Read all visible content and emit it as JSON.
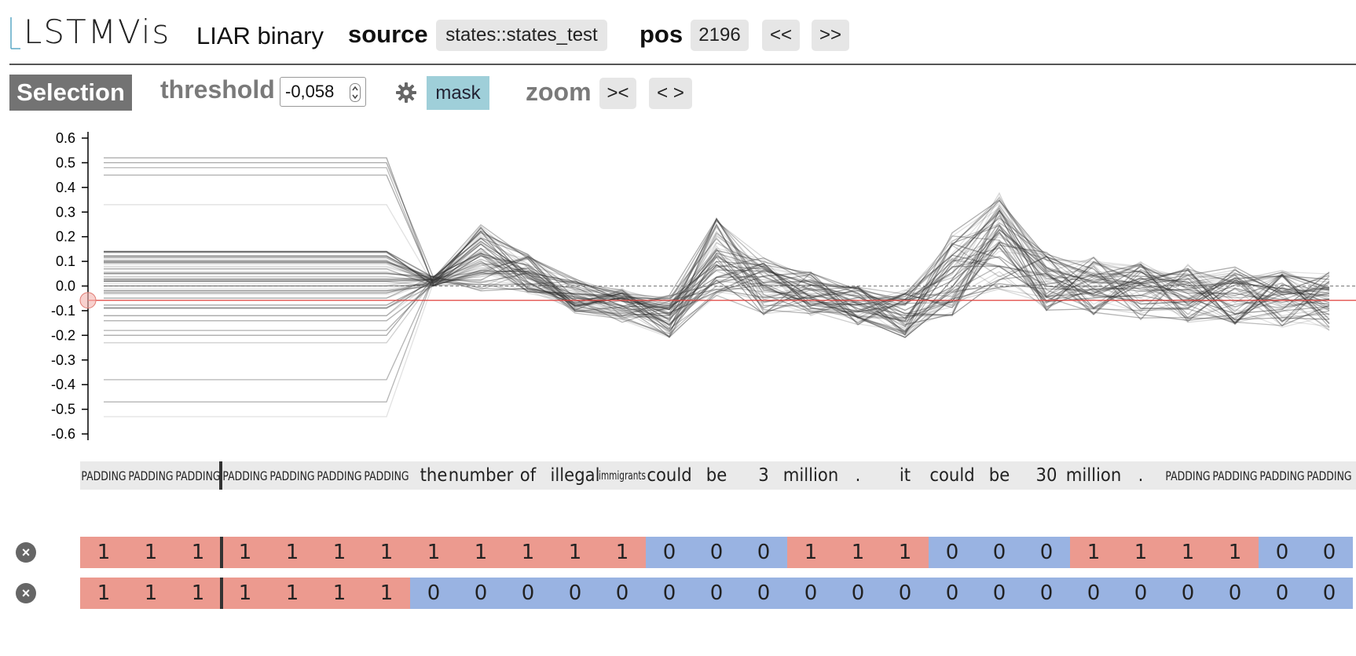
{
  "header": {
    "app_name": "LSTMVis",
    "dataset": "LIAR binary",
    "source_label": "source",
    "source_value": "states::states_test",
    "pos_label": "pos",
    "pos_value": "2196",
    "prev_label": "<<",
    "next_label": ">>"
  },
  "toolbar": {
    "selection_label": "Selection",
    "threshold_label": "threshold",
    "threshold_value": "-0,058",
    "settings_icon": "gear-icon",
    "mask_label": "mask",
    "zoom_label": "zoom",
    "zoom_in_label": "><",
    "zoom_out_label": "< >",
    "mask_active_color": "#9fcfd9"
  },
  "chart_data": {
    "type": "line",
    "ylim": [
      -0.6,
      0.6
    ],
    "yticks": [
      "0.6",
      "0.5",
      "0.4",
      "0.3",
      "0.2",
      "0.1",
      "0.0",
      "-0.1",
      "-0.2",
      "-0.3",
      "-0.4",
      "-0.5",
      "-0.6"
    ],
    "threshold": -0.058,
    "threshold_color": "#e0413c",
    "zero_line": 0.0
  },
  "tokens": [
    "PADDING",
    "PADDING",
    "PADDING",
    "PADDING",
    "PADDING",
    "PADDING",
    "PADDING",
    "the",
    "number",
    "of",
    "illegal",
    "immigrants",
    "could",
    "be",
    "3",
    "million",
    ".",
    "it",
    "could",
    "be",
    "30",
    "million",
    ".",
    "PADDING",
    "PADDING",
    "PADDING",
    "PADDING"
  ],
  "rows": [
    {
      "close_icon": "close-icon",
      "values": [
        "1",
        "1",
        "1",
        "1",
        "1",
        "1",
        "1",
        "1",
        "1",
        "1",
        "1",
        "1",
        "0",
        "0",
        "0",
        "1",
        "1",
        "1",
        "0",
        "0",
        "0",
        "1",
        "1",
        "1",
        "1",
        "0",
        "0"
      ]
    },
    {
      "close_icon": "close-icon",
      "values": [
        "1",
        "1",
        "1",
        "1",
        "1",
        "1",
        "1",
        "0",
        "0",
        "0",
        "0",
        "0",
        "0",
        "0",
        "0",
        "0",
        "0",
        "0",
        "0",
        "0",
        "0",
        "0",
        "0",
        "0",
        "0",
        "0",
        "0"
      ]
    }
  ],
  "colors": {
    "one": "#ec9a8f",
    "zero": "#99b3e2"
  }
}
